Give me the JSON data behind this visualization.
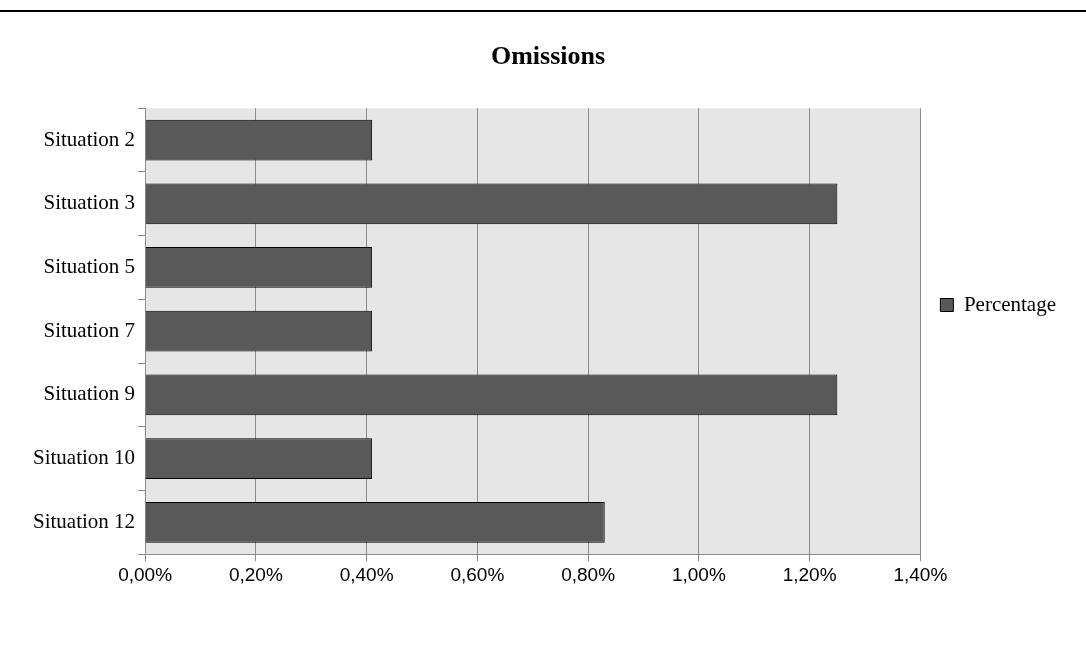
{
  "chart_data": {
    "type": "bar",
    "title": "Omissions",
    "orientation": "horizontal",
    "categories": [
      "Situation 2",
      "Situation 3",
      "Situation 5",
      "Situation 7",
      "Situation 9",
      "Situation 10",
      "Situation 12"
    ],
    "series": [
      {
        "name": "Percentage",
        "color": "#595959",
        "values": [
          0.41,
          1.25,
          0.41,
          0.41,
          1.25,
          0.41,
          0.83
        ]
      }
    ],
    "xlim": [
      0,
      1.4
    ],
    "xticks": [
      {
        "value": 0,
        "label": "0,00%"
      },
      {
        "value": 0.2,
        "label": "0,20%"
      },
      {
        "value": 0.4,
        "label": "0,40%"
      },
      {
        "value": 0.6,
        "label": "0,60%"
      },
      {
        "value": 0.8,
        "label": "0,80%"
      },
      {
        "value": 1.0,
        "label": "1,00%"
      },
      {
        "value": 1.2,
        "label": "1,20%"
      },
      {
        "value": 1.4,
        "label": "1,40%"
      }
    ],
    "grid": "x",
    "legend": "right"
  }
}
